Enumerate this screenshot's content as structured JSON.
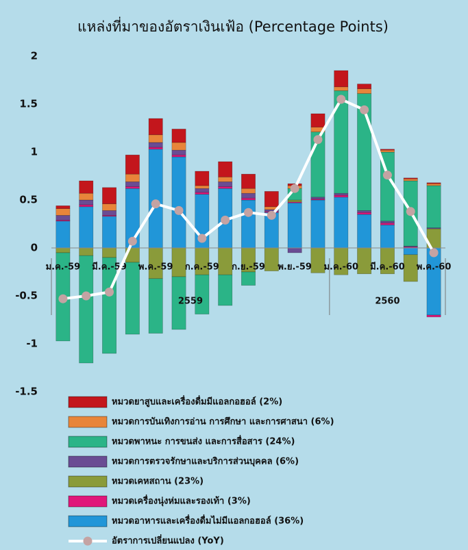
{
  "chart_data": {
    "type": "bar",
    "stacked": true,
    "title": "แหล่งที่มาของอัตราเงินเฟ้อ (Percentage Points)",
    "categories": [
      "ม.ค.-59",
      null,
      "มี.ค.-59",
      null,
      "พ.ค.-59",
      null,
      "ก.ค.-59",
      null,
      "ก.ย.-59",
      null,
      "พ.ย.-59",
      null,
      "ม.ค.-60",
      null,
      "มี.ค.-60",
      null,
      "พ.ค.-60"
    ],
    "x_groups": [
      "2559",
      "2560"
    ],
    "ylim": [
      -1.5,
      2
    ],
    "yticks": [
      2,
      1.5,
      1,
      0.5,
      0,
      -0.5,
      -1,
      -1.5
    ],
    "series": [
      {
        "name": "หมวดยาสูบและเครื่องดื่มมีแอลกอฮอล์ (2%)",
        "color": "#c3161c",
        "values": [
          0.03,
          0.13,
          0.17,
          0.2,
          0.17,
          0.14,
          0.15,
          0.16,
          0.15,
          0.16,
          0.02,
          0.14,
          0.17,
          0.05,
          0.01,
          0.01,
          0.01
        ]
      },
      {
        "name": "หมวดการบันเทิงการอ่าน การศึกษา และการศาสนา (6%)",
        "color": "#e8853a",
        "values": [
          0.07,
          0.07,
          0.07,
          0.08,
          0.08,
          0.08,
          0.03,
          0.05,
          0.05,
          0.03,
          0.03,
          0.05,
          0.04,
          0.05,
          0.02,
          0.02,
          0.02
        ]
      },
      {
        "name": "หมวดพาหนะ การขนส่ง และการสื่อสาร (24%)",
        "color": "#2bb487",
        "values": [
          -0.92,
          -1.12,
          -1.0,
          -0.75,
          -0.57,
          -0.55,
          -0.41,
          -0.32,
          -0.14,
          0,
          0.12,
          0.68,
          1.07,
          1.22,
          0.72,
          0.68,
          0.44
        ]
      },
      {
        "name": "หมวดการตรวจรักษาและบริการส่วนบุคคล (6%)",
        "color": "#6a4c93",
        "values": [
          0.05,
          0.05,
          0.05,
          0.05,
          0.05,
          0.05,
          0.04,
          0.05,
          0.05,
          0.02,
          -0.05,
          0.02,
          0.02,
          0.02,
          0.02,
          0.01,
          0.01
        ]
      },
      {
        "name": "หมวดเคหสถาน (23%)",
        "color": "#8a9b3a",
        "values": [
          -0.05,
          -0.08,
          -0.1,
          -0.15,
          -0.32,
          -0.3,
          -0.28,
          -0.28,
          -0.25,
          -0.24,
          0.02,
          -0.26,
          -0.28,
          -0.27,
          -0.27,
          -0.28,
          0.2
        ]
      },
      {
        "name": "หมวดเครื่องนุ่งห่มและรองเท้า (3%)",
        "color": "#e0177a",
        "values": [
          0.01,
          0.02,
          0.01,
          0.02,
          0.02,
          0.02,
          0.02,
          0.02,
          0.02,
          0.01,
          0.01,
          0.01,
          0.02,
          0.02,
          0.02,
          0.01,
          -0.02
        ]
      },
      {
        "name": "หมวดอาหารและเครื่องดื่มไม่มีแอลกอฮอล์ (36%)",
        "color": "#2196d8",
        "values": [
          0.28,
          0.43,
          0.33,
          0.62,
          1.03,
          0.95,
          0.56,
          0.62,
          0.5,
          0.37,
          0.47,
          0.5,
          0.53,
          0.35,
          0.24,
          -0.07,
          -0.7
        ]
      },
      {
        "name": "อัตราการเปลี่ยนแปลง (YoY)",
        "type": "line",
        "color": "#ffffff",
        "marker_color": "#c4a3a3",
        "values": [
          -0.53,
          -0.5,
          -0.46,
          0.07,
          0.46,
          0.39,
          0.1,
          0.29,
          0.37,
          0.34,
          0.62,
          1.13,
          1.55,
          1.44,
          0.76,
          0.38,
          -0.05
        ]
      }
    ]
  }
}
